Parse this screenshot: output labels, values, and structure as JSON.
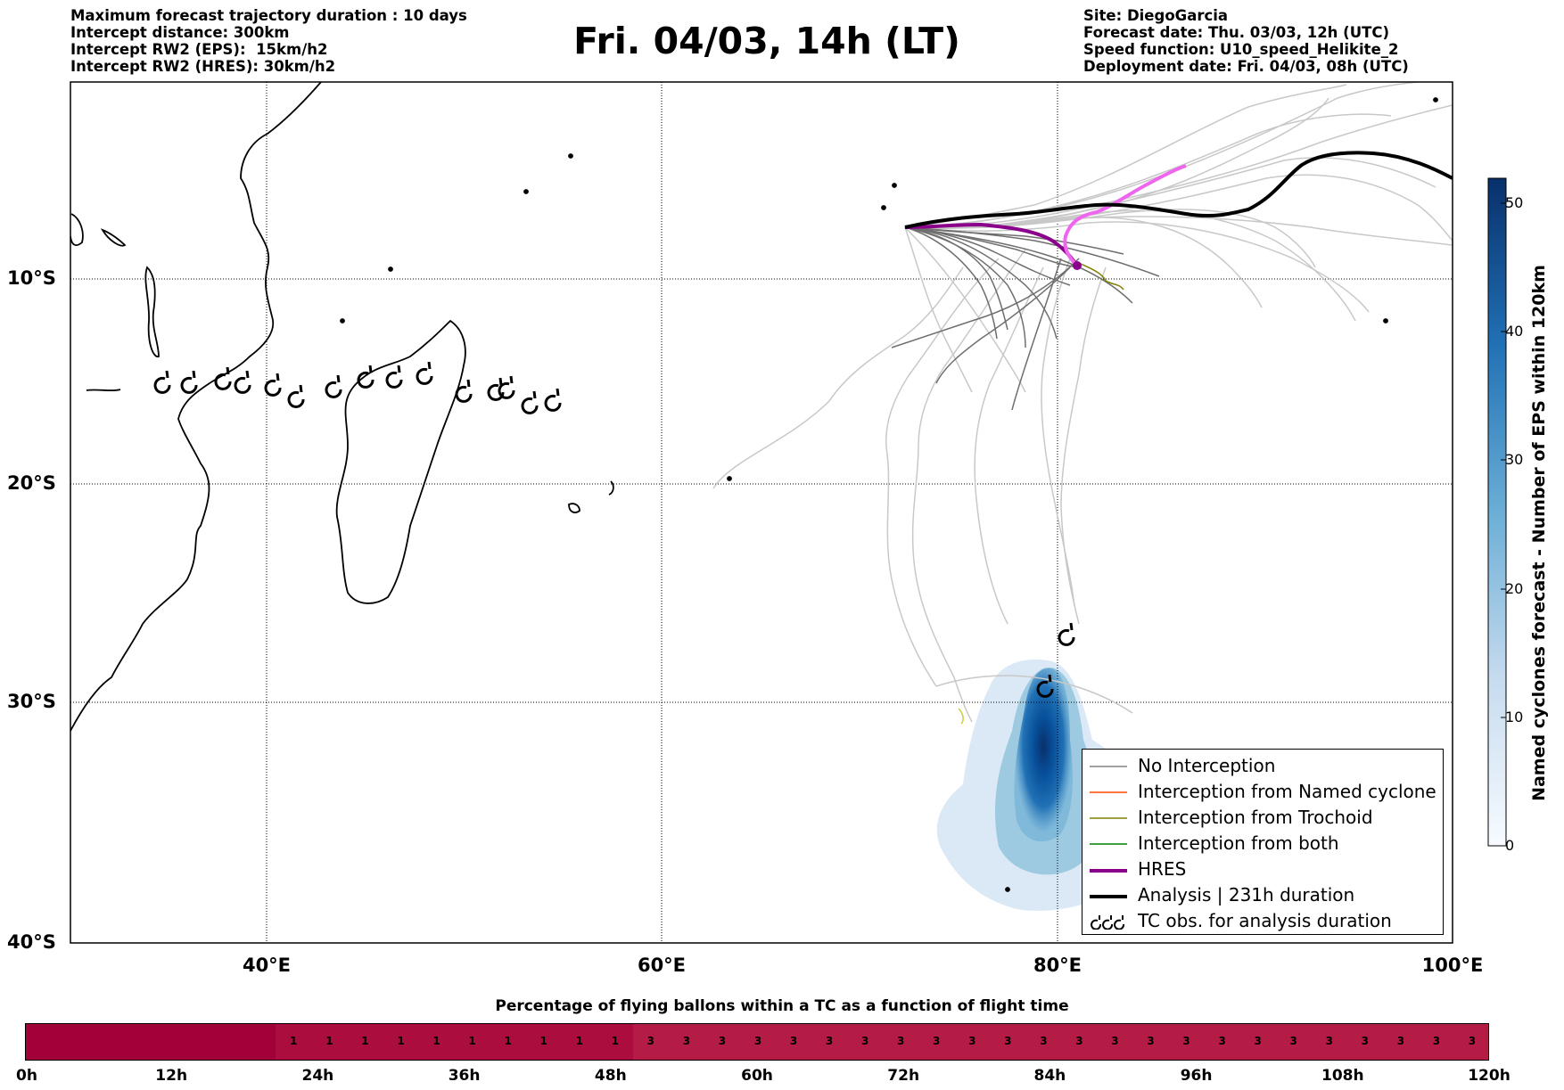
{
  "header": {
    "left_lines": [
      "Maximum forecast trajectory duration : 10 days",
      "Intercept distance: 300km",
      "Intercept RW2 (EPS):  15km/h2",
      "Intercept RW2 (HRES): 30km/h2"
    ],
    "title": "Fri. 04/03, 14h (LT)",
    "right_lines": [
      "Site: DiegoGarcia",
      "Forecast date: Thu. 03/03, 12h (UTC)",
      "Speed function: U10_speed_Helikite_2",
      "Deployment date: Fri. 04/03, 08h (UTC)"
    ]
  },
  "map": {
    "lat_labels": [
      "10°S",
      "20°S",
      "30°S",
      "40°S"
    ],
    "lon_labels": [
      "40°E",
      "60°E",
      "80°E",
      "100°E"
    ],
    "colors": {
      "no_interception": "#808080",
      "named_cyclone": "#ff4500",
      "trochoid": "#808000",
      "both": "#008000",
      "hres": "#8b008b",
      "hres_late": "#ee66ee",
      "analysis": "#000000",
      "eps_light": "#dbe9f6",
      "eps_dark": "#08306b"
    }
  },
  "colorbar": {
    "label": "Named cyclones forecast - Number of EPS within 120km",
    "ticks": [
      "50",
      "40",
      "30",
      "20",
      "10",
      "0"
    ]
  },
  "legend": {
    "items": [
      {
        "label": "No Interception",
        "swatch": "thin",
        "color": "#808080"
      },
      {
        "label": "Interception from Named cyclone",
        "swatch": "thin",
        "color": "#ff4500"
      },
      {
        "label": "Interception from Trochoid",
        "swatch": "thin",
        "color": "#808000"
      },
      {
        "label": "Interception from both",
        "swatch": "thin",
        "color": "#008000"
      },
      {
        "label": "HRES",
        "swatch": "thick",
        "color": "#8b008b"
      },
      {
        "label": "Analysis | 231h duration",
        "swatch": "thick",
        "color": "#000000"
      },
      {
        "label": "TC obs. for analysis duration",
        "swatch": "symbol",
        "color": "#000000"
      }
    ]
  },
  "strip": {
    "title": "Percentage of flying ballons within a TC as a function of flight time",
    "ticks": [
      "0h",
      "12h",
      "24h",
      "36h",
      "48h",
      "60h",
      "72h",
      "84h",
      "96h",
      "108h",
      "120h"
    ],
    "values": [
      "",
      "",
      "",
      "",
      "",
      "",
      "",
      "1",
      "1",
      "1",
      "1",
      "1",
      "1",
      "1",
      "1",
      "1",
      "1",
      "3",
      "3",
      "3",
      "3",
      "3",
      "3",
      "3",
      "3",
      "3",
      "3",
      "3",
      "3",
      "3",
      "3",
      "3",
      "3",
      "3",
      "3",
      "3",
      "3",
      "3",
      "3",
      "3",
      "3"
    ],
    "colors": {
      "zero": "#a10039",
      "one": "#aa0d3e",
      "three": "#b51c45"
    }
  }
}
